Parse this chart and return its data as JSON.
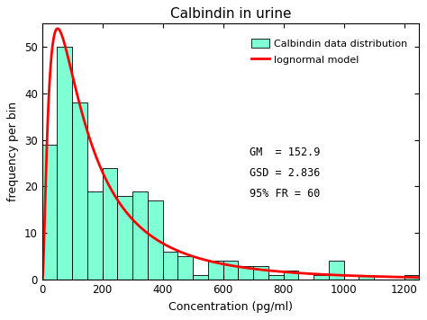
{
  "title": "Calbindin in urine",
  "xlabel": "Concentration (pg/ml)",
  "ylabel": "frequency per bin",
  "bar_color": "#7FFFD4",
  "bar_edge_color": "#000000",
  "line_color": "#FF0000",
  "xlim": [
    0,
    1250
  ],
  "ylim": [
    0,
    55
  ],
  "xticks": [
    0,
    200,
    400,
    600,
    800,
    1000,
    1200
  ],
  "yticks": [
    0,
    10,
    20,
    30,
    40,
    50
  ],
  "bin_width": 50,
  "bar_lefts": [
    0,
    50,
    100,
    150,
    200,
    250,
    300,
    350,
    400,
    450,
    500,
    550,
    600,
    650,
    700,
    750,
    800,
    850,
    900,
    950,
    1000,
    1050,
    1100,
    1150,
    1200
  ],
  "bar_heights": [
    29,
    50,
    38,
    19,
    24,
    18,
    19,
    17,
    6,
    5,
    1,
    4,
    4,
    3,
    3,
    1,
    2,
    0,
    1,
    4,
    0,
    1,
    0,
    0,
    1
  ],
  "GM": 152.9,
  "GSD": 2.836,
  "FR": 60,
  "legend_label_bar": "Calbindin data distribution",
  "legend_label_line": "lognormal model",
  "annotation_line1": "GM  = 152.9",
  "annotation_line2": "GSD = 2.836",
  "annotation_line3": "95% FR = 60",
  "background_color": "#ffffff",
  "figwidth": 4.74,
  "figheight": 3.56,
  "dpi": 100
}
